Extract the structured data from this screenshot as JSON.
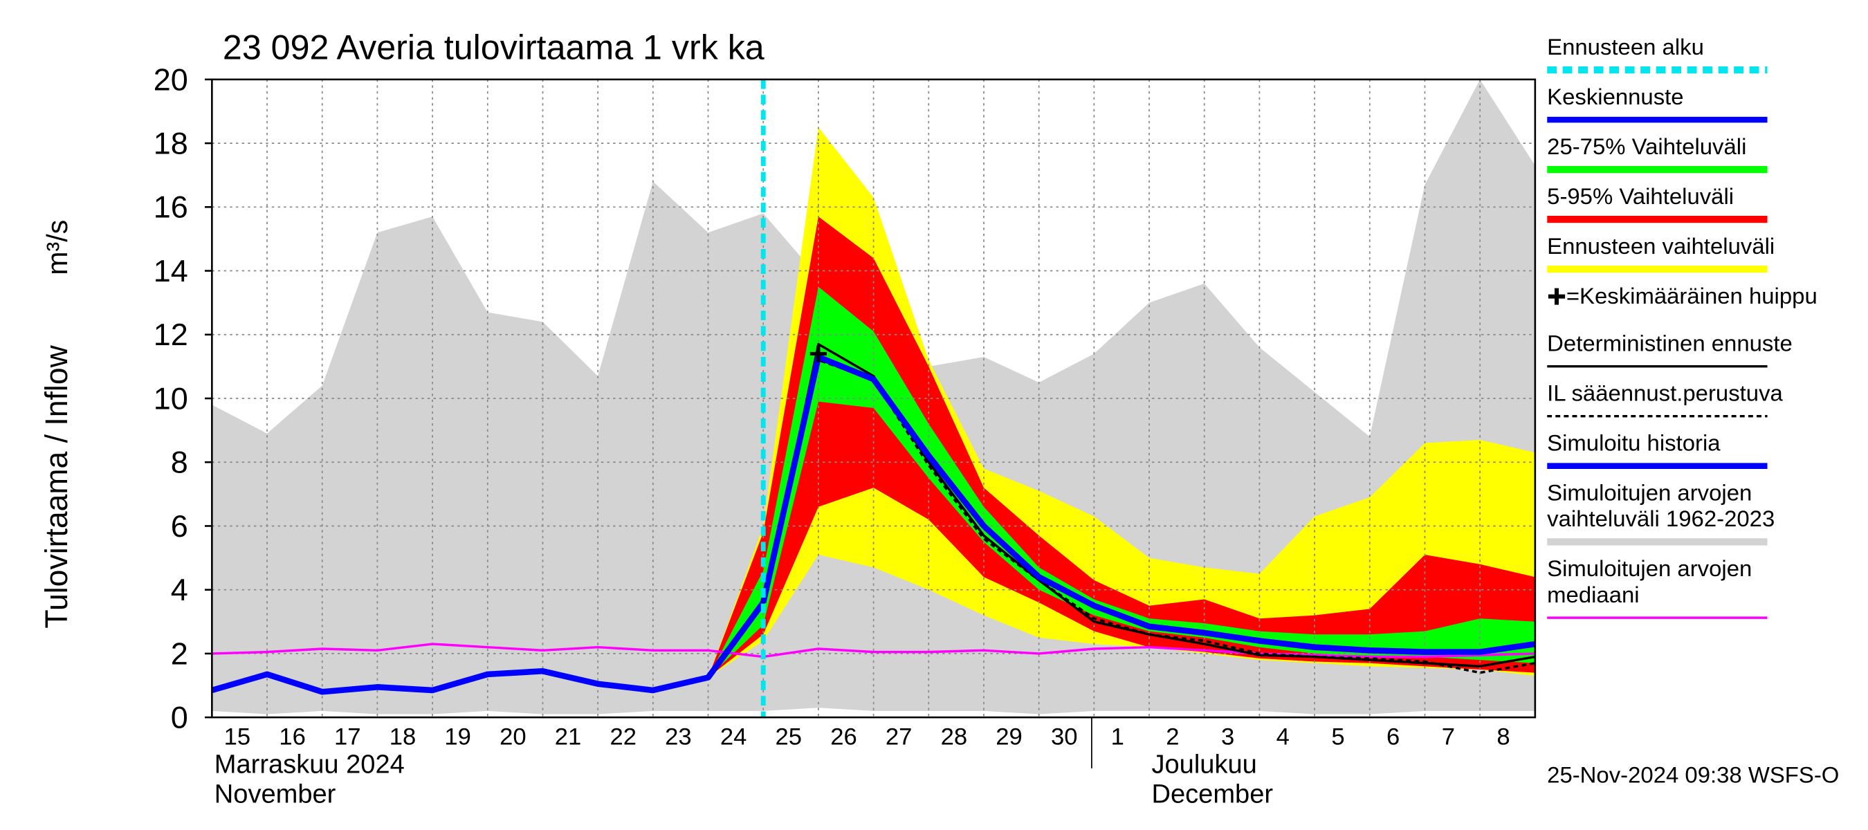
{
  "chart_data": {
    "type": "forecast-band",
    "title": "23 092 Averia tulovirtaama 1 vrk ka",
    "y_label": "Tulovirtaama / Inflow",
    "y_unit": "m³/s",
    "x": [
      "15",
      "16",
      "17",
      "18",
      "19",
      "20",
      "21",
      "22",
      "23",
      "24",
      "25",
      "26",
      "27",
      "28",
      "29",
      "30",
      "1",
      "2",
      "3",
      "4",
      "5",
      "6",
      "7",
      "8",
      null
    ],
    "months": [
      {
        "start": "15",
        "label": "Marraskuu 2024",
        "label_en": "November"
      },
      {
        "start": "1",
        "label": "Joulukuu",
        "label_en": "December"
      }
    ],
    "ylim": [
      0,
      20
    ],
    "yticks": [
      0,
      2,
      4,
      6,
      8,
      10,
      12,
      14,
      16,
      18,
      20
    ],
    "grid": true,
    "timestamp": "25-Nov-2024 09:38 WSFS-O",
    "series": [
      {
        "name": "Ennusteen alku",
        "kind": "vline",
        "color": "#00e5ee",
        "at": "25"
      },
      {
        "name": "Keskiennuste",
        "kind": "line",
        "color": "#0000ff",
        "width": 5,
        "values": [
          null,
          null,
          null,
          null,
          null,
          null,
          null,
          null,
          null,
          null,
          3.6,
          11.3,
          10.6,
          8.2,
          6.0,
          4.4,
          3.5,
          2.85,
          2.65,
          2.4,
          2.2,
          2.1,
          2.05,
          2.05,
          2.3
        ]
      },
      {
        "name": "25-75% Vaihteluväli",
        "kind": "band",
        "color": "#00ff00",
        "low": [
          null,
          null,
          null,
          null,
          null,
          null,
          null,
          null,
          null,
          1.25,
          2.9,
          9.9,
          9.7,
          7.5,
          5.5,
          4.0,
          3.2,
          2.7,
          2.5,
          2.2,
          2.0,
          1.9,
          1.9,
          1.8,
          1.7
        ],
        "high": [
          null,
          null,
          null,
          null,
          null,
          null,
          null,
          null,
          null,
          1.25,
          4.6,
          13.5,
          12.1,
          9.2,
          6.6,
          4.7,
          3.7,
          3.1,
          2.95,
          2.7,
          2.6,
          2.6,
          2.7,
          3.1,
          3.0
        ]
      },
      {
        "name": "5-95% Vaihteluväli",
        "kind": "band",
        "color": "#ff0000",
        "low": [
          null,
          null,
          null,
          null,
          null,
          null,
          null,
          null,
          null,
          1.25,
          2.6,
          6.6,
          7.2,
          6.2,
          4.4,
          3.6,
          2.7,
          2.2,
          2.05,
          1.85,
          1.75,
          1.7,
          1.6,
          1.5,
          1.4
        ],
        "high": [
          null,
          null,
          null,
          null,
          null,
          null,
          null,
          null,
          null,
          1.25,
          5.8,
          15.7,
          14.4,
          11.0,
          7.2,
          5.7,
          4.3,
          3.5,
          3.7,
          3.1,
          3.2,
          3.4,
          5.1,
          4.8,
          4.4
        ]
      },
      {
        "name": "Ennusteen vaihteluväli",
        "kind": "band",
        "color": "#ffff00",
        "low": [
          null,
          null,
          null,
          null,
          null,
          null,
          null,
          null,
          null,
          1.25,
          2.4,
          5.1,
          4.7,
          4.0,
          3.2,
          2.5,
          2.3,
          2.2,
          2.0,
          1.8,
          1.7,
          1.6,
          1.55,
          1.5,
          1.3
        ],
        "high": [
          null,
          null,
          null,
          null,
          null,
          null,
          null,
          null,
          null,
          1.25,
          6.0,
          18.5,
          16.3,
          11.2,
          7.8,
          7.1,
          6.3,
          5.0,
          4.7,
          4.5,
          6.3,
          6.9,
          8.6,
          8.7,
          8.3
        ]
      },
      {
        "name": "=Keskimääräinen huippu",
        "kind": "marker",
        "color": "#000000",
        "at": "26",
        "value": 11.4
      },
      {
        "name": "Deterministinen ennuste",
        "kind": "line",
        "color": "#000000",
        "width": 2,
        "values": [
          null,
          null,
          null,
          null,
          null,
          null,
          null,
          null,
          null,
          null,
          3.5,
          11.7,
          10.7,
          8.0,
          5.7,
          4.3,
          3.0,
          2.6,
          2.3,
          1.95,
          1.9,
          1.8,
          1.7,
          1.6,
          1.9
        ]
      },
      {
        "name": "IL sääennust.perustuva",
        "kind": "line",
        "color": "#000000",
        "width": 2,
        "dash": true,
        "values": [
          null,
          null,
          null,
          null,
          null,
          null,
          null,
          null,
          null,
          null,
          3.4,
          11.2,
          10.6,
          7.9,
          5.6,
          4.3,
          3.1,
          2.6,
          2.4,
          2.0,
          1.9,
          1.85,
          1.75,
          1.4,
          1.7
        ]
      },
      {
        "name": "Simuloitu historia",
        "kind": "line",
        "color": "#0000ff",
        "width": 5,
        "values": [
          0.85,
          1.35,
          0.8,
          0.95,
          0.85,
          1.35,
          1.45,
          1.05,
          0.85,
          1.25,
          3.6,
          null,
          null,
          null,
          null,
          null,
          null,
          null,
          null,
          null,
          null,
          null,
          null,
          null,
          null
        ]
      },
      {
        "name": "Simuloitujen arvojen vaihteluväli 1962-2023",
        "kind": "band",
        "color": "#d3d3d3",
        "low": [
          0.2,
          0.1,
          0.2,
          0.1,
          0.1,
          0.2,
          0.1,
          0.1,
          0.2,
          0.2,
          0.2,
          0.3,
          0.2,
          0.2,
          0.2,
          0.1,
          0.2,
          0.2,
          0.2,
          0.2,
          0.1,
          0.1,
          0.2,
          0.2,
          0.2
        ],
        "high": [
          9.8,
          8.9,
          10.4,
          15.2,
          15.7,
          12.7,
          12.4,
          10.7,
          16.8,
          15.2,
          15.8,
          13.8,
          10.9,
          11.0,
          11.3,
          10.5,
          11.4,
          13.0,
          13.6,
          11.6,
          10.2,
          8.8,
          16.7,
          20.0,
          17.3
        ]
      },
      {
        "name": "Simuloitujen arvojen mediaani",
        "kind": "line",
        "color": "#ff00ff",
        "width": 2,
        "values": [
          2.0,
          2.05,
          2.15,
          2.1,
          2.3,
          2.2,
          2.1,
          2.2,
          2.1,
          2.1,
          1.9,
          2.15,
          2.05,
          2.05,
          2.1,
          2.0,
          2.15,
          2.2,
          2.1,
          2.0,
          1.95,
          1.9,
          1.9,
          1.95,
          2.0
        ]
      }
    ]
  }
}
